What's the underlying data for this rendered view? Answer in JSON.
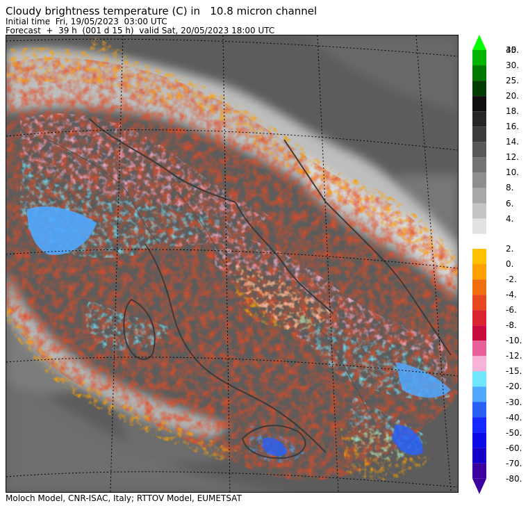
{
  "header": {
    "title": "Cloudy brightness temperature (C) in   10.8 micron channel",
    "initial_time": "Initial time  Fri, 19/05/2023  03:00 UTC",
    "forecast": "Forecast  +  39 h  (001 d 15 h)  valid Sat, 20/05/2023 18:00 UTC"
  },
  "footer": {
    "credit": "Moloch Model, CNR-ISAC, Italy; RTTOV Model, EUMETSAT"
  },
  "colorbar": {
    "upper": [
      {
        "label": "40.",
        "color": "#00ff00"
      },
      {
        "label": "35.",
        "color": "#00b400"
      },
      {
        "label": "30.",
        "color": "#007800"
      },
      {
        "label": "25.",
        "color": "#003c00"
      },
      {
        "label": "20.",
        "color": "#0f0f0f"
      },
      {
        "label": "18.",
        "color": "#262626"
      },
      {
        "label": "16.",
        "color": "#3c3c3c"
      },
      {
        "label": "14.",
        "color": "#585858"
      },
      {
        "label": "12.",
        "color": "#737373"
      },
      {
        "label": "10.",
        "color": "#8e8e8e"
      },
      {
        "label": "8.",
        "color": "#a8a8a8"
      },
      {
        "label": "6.",
        "color": "#c4c4c4"
      },
      {
        "label": "4.",
        "color": "#e2e2e2"
      }
    ],
    "lower": [
      {
        "label": "2.",
        "color": "#ffc000"
      },
      {
        "label": "0.",
        "color": "#ffa000"
      },
      {
        "label": "-2.",
        "color": "#f07010"
      },
      {
        "label": "-4.",
        "color": "#e84820"
      },
      {
        "label": "-6.",
        "color": "#dc2430"
      },
      {
        "label": "-8.",
        "color": "#c80a3c"
      },
      {
        "label": "-10.",
        "color": "#e8609a"
      },
      {
        "label": "-12.",
        "color": "#f8b4d8"
      },
      {
        "label": "-15.",
        "color": "#70e6ff"
      },
      {
        "label": "-20.",
        "color": "#50a8ff"
      },
      {
        "label": "-30.",
        "color": "#2860f8"
      },
      {
        "label": "-40.",
        "color": "#1428ff"
      },
      {
        "label": "-50.",
        "color": "#0a0ae6"
      },
      {
        "label": "-60.",
        "color": "#1400c8"
      },
      {
        "label": "-70.",
        "color": "#3c00a0"
      }
    ],
    "bottom_label": "-80."
  },
  "map": {
    "background_color": "#5a5a5a",
    "land_color": "#4a4a4a",
    "sea_color": "#3e3e3e",
    "coastline_color": "#3a3a3a"
  }
}
